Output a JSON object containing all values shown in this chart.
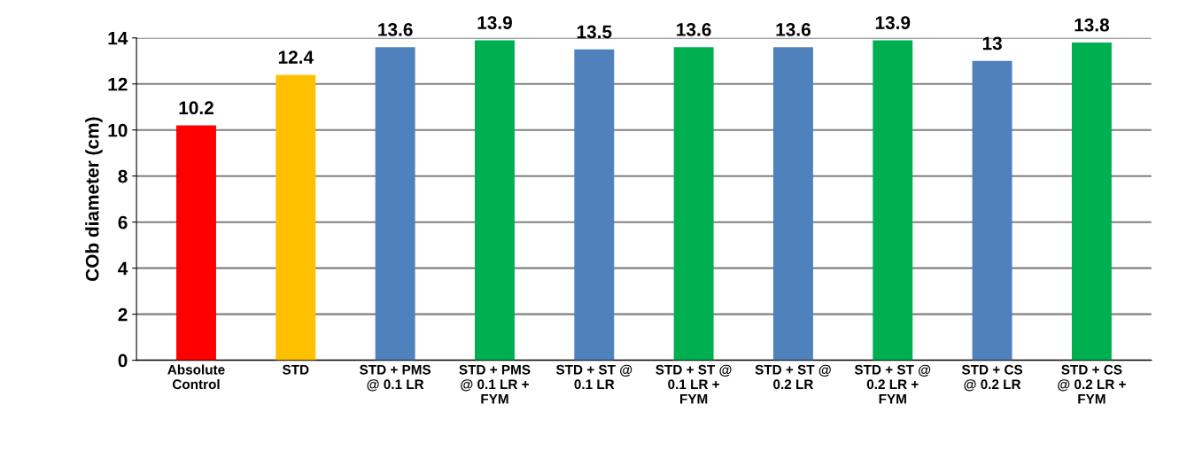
{
  "chart_data": {
    "type": "bar",
    "ylabel": "COb diameter (cm)",
    "categories": [
      "Absolute\nControl",
      "STD",
      "STD + PMS\n@ 0.1 LR",
      "STD + PMS\n@ 0.1 LR +\nFYM",
      "STD + ST @\n0.1 LR",
      "STD + ST @\n0.1 LR +\nFYM",
      "STD + ST @\n0.2 LR",
      "STD + ST @\n0.2 LR +\nFYM",
      "STD + CS\n@ 0.2 LR",
      "STD + CS\n@ 0.2 LR +\nFYM"
    ],
    "values": [
      10.2,
      12.4,
      13.6,
      13.9,
      13.5,
      13.6,
      13.6,
      13.9,
      13,
      13.8
    ],
    "colors": [
      "#ff0000",
      "#ffc000",
      "#4f81bd",
      "#00b050",
      "#4f81bd",
      "#00b050",
      "#4f81bd",
      "#00b050",
      "#4f81bd",
      "#00b050"
    ],
    "ylim": [
      0,
      14
    ],
    "yticks": [
      0,
      2,
      4,
      6,
      8,
      10,
      12,
      14
    ],
    "grid": "y",
    "data_labels": true
  }
}
